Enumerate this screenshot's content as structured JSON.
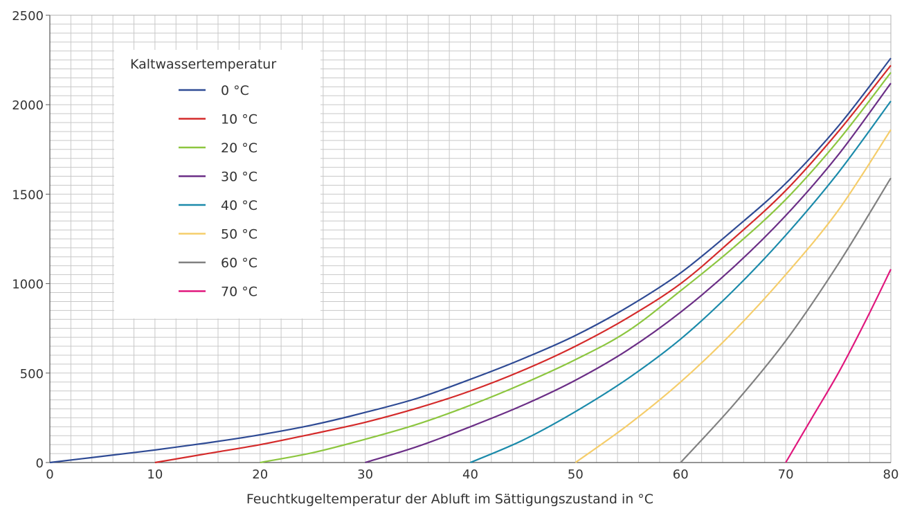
{
  "chart_data": {
    "type": "line",
    "title": "",
    "xlabel": "Feuchtkugeltemperatur der Abluft im Sättigungszustand in °C",
    "ylabel": "",
    "xlim": [
      0,
      80
    ],
    "ylim": [
      0,
      2500
    ],
    "x_ticks": [
      "0",
      "10",
      "20",
      "30",
      "40",
      "50",
      "60",
      "70",
      "80"
    ],
    "y_ticks": [
      "0",
      "500",
      "1000",
      "1500",
      "2000",
      "2500"
    ],
    "grid": true,
    "legend": {
      "title": "Kaltwassertemperatur",
      "placement": "top-left"
    },
    "series": [
      {
        "name": "0 °C",
        "color": "#2e4a94",
        "x": [
          0,
          5,
          10,
          15,
          20,
          25,
          30,
          35,
          40,
          45,
          50,
          55,
          60,
          65,
          70,
          75,
          80
        ],
        "y": [
          0,
          35,
          70,
          110,
          155,
          210,
          280,
          360,
          465,
          580,
          710,
          870,
          1060,
          1300,
          1560,
          1880,
          2260
        ]
      },
      {
        "name": "10 °C",
        "color": "#d42a2a",
        "x": [
          10,
          15,
          20,
          25,
          30,
          35,
          40,
          45,
          50,
          55,
          60,
          65,
          70,
          75,
          80
        ],
        "y": [
          0,
          50,
          100,
          160,
          225,
          305,
          400,
          515,
          650,
          810,
          1000,
          1250,
          1520,
          1850,
          2220
        ]
      },
      {
        "name": "20 °C",
        "color": "#8cc63f",
        "x": [
          20,
          25,
          30,
          35,
          40,
          45,
          50,
          55,
          60,
          65,
          70,
          75,
          80
        ],
        "y": [
          0,
          55,
          130,
          215,
          320,
          440,
          575,
          735,
          960,
          1200,
          1470,
          1800,
          2180
        ]
      },
      {
        "name": "30 °C",
        "color": "#6b2e86",
        "x": [
          30,
          35,
          40,
          45,
          50,
          55,
          60,
          65,
          70,
          75,
          80
        ],
        "y": [
          0,
          90,
          200,
          320,
          460,
          630,
          840,
          1090,
          1380,
          1720,
          2120
        ]
      },
      {
        "name": "40 °C",
        "color": "#1a8aaa",
        "x": [
          40,
          45,
          50,
          55,
          60,
          65,
          70,
          75,
          80
        ],
        "y": [
          0,
          125,
          285,
          470,
          690,
          960,
          1270,
          1620,
          2020
        ]
      },
      {
        "name": "50 °C",
        "color": "#f5cd6a",
        "x": [
          50,
          55,
          60,
          65,
          70,
          75,
          80
        ],
        "y": [
          0,
          210,
          450,
          730,
          1050,
          1410,
          1860
        ]
      },
      {
        "name": "60 °C",
        "color": "#808080",
        "x": [
          60,
          65,
          70,
          75,
          80
        ],
        "y": [
          0,
          320,
          680,
          1110,
          1590
        ]
      },
      {
        "name": "70 °C",
        "color": "#e0177d",
        "x": [
          70,
          72.5,
          75,
          77.5,
          80
        ],
        "y": [
          0,
          250,
          500,
          780,
          1080
        ]
      }
    ]
  }
}
